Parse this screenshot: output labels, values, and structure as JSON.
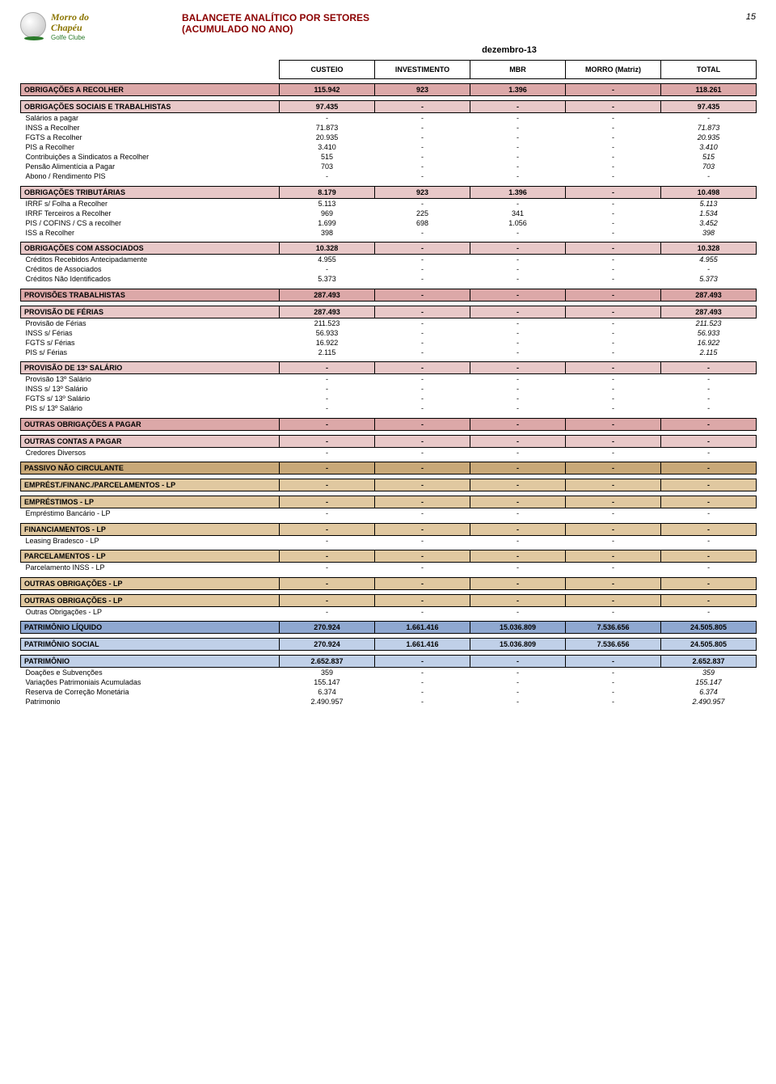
{
  "header": {
    "logo_line1": "Morro do",
    "logo_line2": "Chapéu",
    "logo_sub": "Golfe Clube",
    "title1": "BALANCETE ANALÍTICO POR SETORES",
    "title2": "(ACUMULADO NO ANO)",
    "page": "15",
    "date": "dezembro-13"
  },
  "columns": [
    "CUSTEIO",
    "INVESTIMENTO",
    "MBR",
    "MORRO (Matriz)",
    "TOTAL"
  ],
  "colors": {
    "title": "#8b0000",
    "pink": "#dca8a8",
    "lpink": "#e8c8c8",
    "brown": "#c8a878",
    "lbrown": "#e0c8a0",
    "blue": "#8fa8d0",
    "lblue": "#c0d0e8"
  },
  "sections": [
    {
      "type": "section",
      "bg": "bg-pink",
      "label": "OBRIGAÇÕES A RECOLHER",
      "v": [
        "115.942",
        "923",
        "1.396",
        "-",
        "118.261"
      ]
    },
    {
      "type": "spacer"
    },
    {
      "type": "subsection",
      "bg": "bg-lpink",
      "label": "OBRIGAÇÕES SOCIAIS E TRABALHISTAS",
      "v": [
        "97.435",
        "-",
        "-",
        "-",
        "97.435"
      ]
    },
    {
      "type": "detail",
      "label": "Salários a pagar",
      "v": [
        "-",
        "-",
        "-",
        "-",
        "-"
      ]
    },
    {
      "type": "detail",
      "label": "INSS a Recolher",
      "v": [
        "71.873",
        "-",
        "-",
        "-",
        "71.873"
      ]
    },
    {
      "type": "detail",
      "label": "FGTS a Recolher",
      "v": [
        "20.935",
        "-",
        "-",
        "-",
        "20.935"
      ]
    },
    {
      "type": "detail",
      "label": "PIS a Recolher",
      "v": [
        "3.410",
        "-",
        "-",
        "-",
        "3.410"
      ]
    },
    {
      "type": "detail",
      "label": "Contribuições a Sindicatos a Recolher",
      "v": [
        "515",
        "-",
        "-",
        "-",
        "515"
      ]
    },
    {
      "type": "detail",
      "label": "Pensão Alimentícia a Pagar",
      "v": [
        "703",
        "-",
        "-",
        "-",
        "703"
      ]
    },
    {
      "type": "detail",
      "label": "Abono / Rendimento PIS",
      "v": [
        "-",
        "-",
        "-",
        "-",
        "-"
      ]
    },
    {
      "type": "spacer"
    },
    {
      "type": "subsection",
      "bg": "bg-lpink",
      "label": "OBRIGAÇÕES TRIBUTÁRIAS",
      "v": [
        "8.179",
        "923",
        "1.396",
        "-",
        "10.498"
      ]
    },
    {
      "type": "detail",
      "label": "IRRF s/ Folha a Recolher",
      "v": [
        "5.113",
        "-",
        "-",
        "-",
        "5.113"
      ]
    },
    {
      "type": "detail",
      "label": "IRRF Terceiros a Recolher",
      "v": [
        "969",
        "225",
        "341",
        "-",
        "1.534"
      ]
    },
    {
      "type": "detail",
      "label": "PIS / COFINS / CS a recolher",
      "v": [
        "1.699",
        "698",
        "1.056",
        "-",
        "3.452"
      ]
    },
    {
      "type": "detail",
      "label": "ISS a Recolher",
      "v": [
        "398",
        "-",
        "-",
        "-",
        "398"
      ]
    },
    {
      "type": "spacer"
    },
    {
      "type": "subsection",
      "bg": "bg-lpink",
      "label": "OBRIGAÇÕES COM ASSOCIADOS",
      "v": [
        "10.328",
        "-",
        "-",
        "-",
        "10.328"
      ]
    },
    {
      "type": "detail",
      "label": "Créditos Recebidos Antecipadamente",
      "v": [
        "4.955",
        "-",
        "-",
        "-",
        "4.955"
      ]
    },
    {
      "type": "detail",
      "label": "Créditos de Associados",
      "v": [
        "-",
        "-",
        "-",
        "-",
        "-"
      ]
    },
    {
      "type": "detail",
      "label": "Créditos Não Identificados",
      "v": [
        "5.373",
        "-",
        "-",
        "-",
        "5.373"
      ]
    },
    {
      "type": "spacer"
    },
    {
      "type": "section",
      "bg": "bg-pink",
      "label": "PROVISÕES TRABALHISTAS",
      "v": [
        "287.493",
        "-",
        "-",
        "-",
        "287.493"
      ]
    },
    {
      "type": "spacer"
    },
    {
      "type": "subsection",
      "bg": "bg-lpink",
      "label": "PROVISÃO DE FÉRIAS",
      "v": [
        "287.493",
        "-",
        "-",
        "-",
        "287.493"
      ]
    },
    {
      "type": "detail",
      "label": "Provisão de Férias",
      "v": [
        "211.523",
        "-",
        "-",
        "-",
        "211.523"
      ]
    },
    {
      "type": "detail",
      "label": "INSS s/ Férias",
      "v": [
        "56.933",
        "-",
        "-",
        "-",
        "56.933"
      ]
    },
    {
      "type": "detail",
      "label": "FGTS s/ Férias",
      "v": [
        "16.922",
        "-",
        "-",
        "-",
        "16.922"
      ]
    },
    {
      "type": "detail",
      "label": "PIS s/ Férias",
      "v": [
        "2.115",
        "-",
        "-",
        "-",
        "2.115"
      ]
    },
    {
      "type": "spacer"
    },
    {
      "type": "subsection",
      "bg": "bg-lpink",
      "label": "PROVISÃO DE 13º SALÁRIO",
      "v": [
        "-",
        "-",
        "-",
        "-",
        "-"
      ]
    },
    {
      "type": "detail",
      "label": "Provisão 13º Salário",
      "v": [
        "-",
        "-",
        "-",
        "-",
        "-"
      ]
    },
    {
      "type": "detail",
      "label": "INSS s/ 13º Salário",
      "v": [
        "-",
        "-",
        "-",
        "-",
        "-"
      ]
    },
    {
      "type": "detail",
      "label": "FGTS s/ 13º Salário",
      "v": [
        "-",
        "-",
        "-",
        "-",
        "-"
      ]
    },
    {
      "type": "detail",
      "label": "PIS s/ 13º Salário",
      "v": [
        "-",
        "-",
        "-",
        "-",
        "-"
      ]
    },
    {
      "type": "spacer"
    },
    {
      "type": "section",
      "bg": "bg-pink",
      "label": "OUTRAS OBRIGAÇÕES A PAGAR",
      "v": [
        "-",
        "-",
        "-",
        "-",
        "-"
      ]
    },
    {
      "type": "spacer"
    },
    {
      "type": "subsection",
      "bg": "bg-lpink",
      "label": "OUTRAS CONTAS A PAGAR",
      "v": [
        "-",
        "-",
        "-",
        "-",
        "-"
      ]
    },
    {
      "type": "detail",
      "label": "Credores Diversos",
      "v": [
        "-",
        "-",
        "-",
        "-",
        "-"
      ]
    },
    {
      "type": "spacer"
    },
    {
      "type": "section",
      "bg": "bg-brown",
      "label": "PASSIVO NÃO CIRCULANTE",
      "v": [
        "-",
        "-",
        "-",
        "-",
        "-"
      ]
    },
    {
      "type": "spacer"
    },
    {
      "type": "section",
      "bg": "bg-lbrown",
      "label": "EMPRÉST./FINANC./PARCELAMENTOS - LP",
      "v": [
        "-",
        "-",
        "-",
        "-",
        "-"
      ]
    },
    {
      "type": "spacer"
    },
    {
      "type": "subsection",
      "bg": "bg-lbrown",
      "label": "EMPRÉSTIMOS - LP",
      "v": [
        "-",
        "-",
        "-",
        "-",
        "-"
      ]
    },
    {
      "type": "detail",
      "label": "Empréstimo Bancário - LP",
      "v": [
        "-",
        "-",
        "-",
        "-",
        "-"
      ]
    },
    {
      "type": "spacer"
    },
    {
      "type": "subsection",
      "bg": "bg-lbrown",
      "label": "FINANCIAMENTOS - LP",
      "v": [
        "-",
        "-",
        "-",
        "-",
        "-"
      ]
    },
    {
      "type": "detail",
      "label": "Leasing Bradesco - LP",
      "v": [
        "-",
        "-",
        "-",
        "-",
        "-"
      ]
    },
    {
      "type": "spacer"
    },
    {
      "type": "subsection",
      "bg": "bg-lbrown",
      "label": "PARCELAMENTOS - LP",
      "v": [
        "-",
        "-",
        "-",
        "-",
        "-"
      ]
    },
    {
      "type": "detail",
      "label": "Parcelamento INSS - LP",
      "v": [
        "-",
        "-",
        "-",
        "-",
        "-"
      ]
    },
    {
      "type": "spacer"
    },
    {
      "type": "section",
      "bg": "bg-lbrown",
      "label": "OUTRAS OBRIGAÇÕES - LP",
      "v": [
        "-",
        "-",
        "-",
        "-",
        "-"
      ]
    },
    {
      "type": "spacer"
    },
    {
      "type": "subsection",
      "bg": "bg-lbrown",
      "label": "OUTRAS OBRIGAÇÕES - LP",
      "v": [
        "-",
        "-",
        "-",
        "-",
        "-"
      ]
    },
    {
      "type": "detail",
      "label": "Outras Obrigações - LP",
      "v": [
        "-",
        "-",
        "-",
        "-",
        "-"
      ]
    },
    {
      "type": "spacer"
    },
    {
      "type": "section",
      "bg": "bg-blue",
      "label": "PATRIMÔNIO LÍQUIDO",
      "v": [
        "270.924",
        "1.661.416",
        "15.036.809",
        "7.536.656",
        "24.505.805"
      ]
    },
    {
      "type": "spacer"
    },
    {
      "type": "section",
      "bg": "bg-lblue",
      "label": "PATRIMÔNIO SOCIAL",
      "v": [
        "270.924",
        "1.661.416",
        "15.036.809",
        "7.536.656",
        "24.505.805"
      ]
    },
    {
      "type": "spacer"
    },
    {
      "type": "subsection",
      "bg": "bg-lblue",
      "label": "PATRIMÔNIO",
      "v": [
        "2.652.837",
        "-",
        "-",
        "-",
        "2.652.837"
      ]
    },
    {
      "type": "detail",
      "label": "Doações e Subvenções",
      "v": [
        "359",
        "-",
        "-",
        "-",
        "359"
      ]
    },
    {
      "type": "detail",
      "label": "Variações Patrimoniais Acumuladas",
      "v": [
        "155.147",
        "-",
        "-",
        "-",
        "155.147"
      ]
    },
    {
      "type": "detail",
      "label": "Reserva de Correção Monetária",
      "v": [
        "6.374",
        "-",
        "-",
        "-",
        "6.374"
      ]
    },
    {
      "type": "detail",
      "label": "Patrimonio",
      "v": [
        "2.490.957",
        "-",
        "-",
        "-",
        "2.490.957"
      ]
    }
  ]
}
